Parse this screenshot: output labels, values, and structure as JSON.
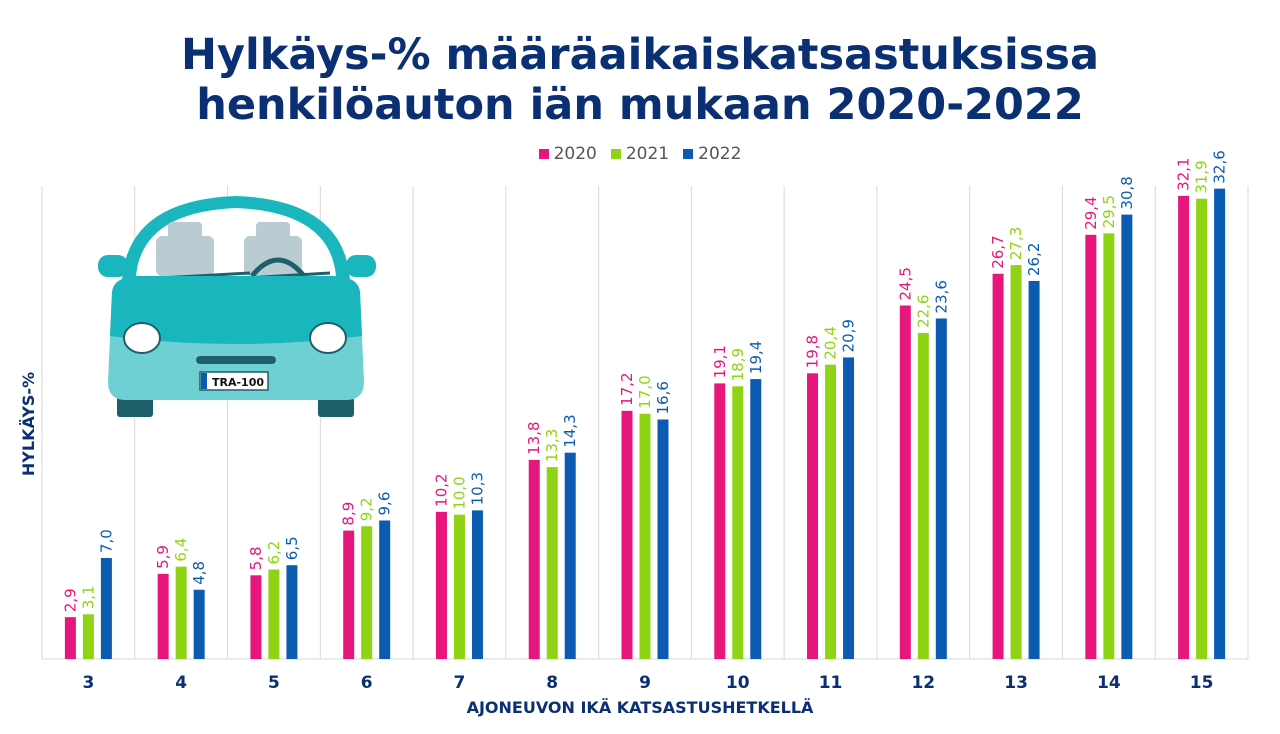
{
  "title_line1": "Hylkäys-% määräaikaiskatsastuksissa",
  "title_line2": "henkilöauton iän mukaan 2020-2022",
  "license_plate": "TRA-100",
  "colors": {
    "s2020": "#e6167c",
    "s2021": "#8fd414",
    "s2022": "#0b5cb0",
    "navy": "#0a2f73"
  },
  "chart_data": {
    "type": "bar",
    "xlabel": "AJONEUVON IKÄ KATSASTUSHETKELLÄ",
    "ylabel": "HYLKÄYS-%",
    "legend": "top",
    "grid": "vertical",
    "ylim": [
      0,
      35
    ],
    "categories": [
      "3",
      "4",
      "5",
      "6",
      "7",
      "8",
      "9",
      "10",
      "11",
      "12",
      "13",
      "14",
      "15"
    ],
    "series": [
      {
        "name": "2020",
        "values": [
          2.9,
          5.9,
          5.8,
          8.9,
          10.2,
          13.8,
          17.2,
          19.1,
          19.8,
          24.5,
          26.7,
          29.4,
          32.1
        ],
        "labels": [
          "2,9",
          "5,9",
          "5,8",
          "8,9",
          "10,2",
          "13,8",
          "17,2",
          "19,1",
          "19,8",
          "24,5",
          "26,7",
          "29,4",
          "32,1"
        ]
      },
      {
        "name": "2021",
        "values": [
          3.1,
          6.4,
          6.2,
          9.2,
          10.0,
          13.3,
          17.0,
          18.9,
          20.4,
          22.6,
          27.3,
          29.5,
          31.9
        ],
        "labels": [
          "3,1",
          "6,4",
          "6,2",
          "9,2",
          "10,0",
          "13,3",
          "17,0",
          "18,9",
          "20,4",
          "22,6",
          "27,3",
          "29,5",
          "31,9"
        ]
      },
      {
        "name": "2022",
        "values": [
          7.0,
          4.8,
          6.5,
          9.6,
          10.3,
          14.3,
          16.6,
          19.4,
          20.9,
          23.6,
          26.2,
          30.8,
          32.6
        ],
        "labels": [
          "7,0",
          "4,8",
          "6,5",
          "9,6",
          "10,3",
          "14,3",
          "16,6",
          "19,4",
          "20,9",
          "23,6",
          "26,2",
          "30,8",
          "32,6"
        ]
      }
    ]
  }
}
